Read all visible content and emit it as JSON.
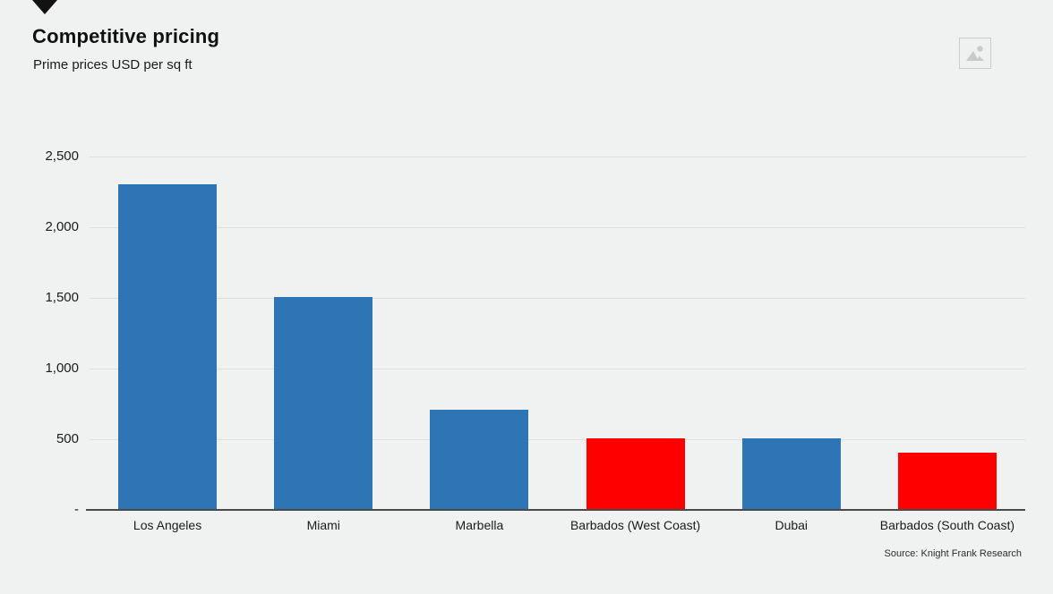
{
  "header": {
    "title": "Competitive pricing",
    "subtitle": "Prime prices USD per sq ft",
    "ribbon_icon": "down-triangle-marker",
    "image_placeholder_icon": "broken-image-icon"
  },
  "chart_data": {
    "type": "bar",
    "title": "Competitive pricing",
    "subtitle": "Prime prices USD per sq ft",
    "categories": [
      "Los Angeles",
      "Miami",
      "Marbella",
      "Barbados (West Coast)",
      "Dubai",
      "Barbados (South Coast)"
    ],
    "values": [
      2300,
      1500,
      700,
      500,
      500,
      400
    ],
    "bar_colors": [
      "#2e75b6",
      "#2e75b6",
      "#2e75b6",
      "#fe0000",
      "#2e75b6",
      "#fe0000"
    ],
    "ylim": [
      0,
      2500
    ],
    "ytick_values": [
      0,
      500,
      1000,
      1500,
      2000,
      2500
    ],
    "ytick_labels": [
      "-",
      "500",
      "1,000",
      "1,500",
      "2,000",
      "2,500"
    ],
    "grid": true,
    "legend": "none",
    "xlabel": "",
    "ylabel": ""
  },
  "footer": {
    "source": "Source: Knight Frank Research"
  },
  "colors": {
    "background": "#eff2f1",
    "bar_blue": "#2e75b6",
    "bar_red": "#fe0000",
    "gridline": "#dce0de",
    "axis_line": "#4a4a4a",
    "text": "#1b1b1b",
    "placeholder_gray": "#c7cbc9"
  }
}
